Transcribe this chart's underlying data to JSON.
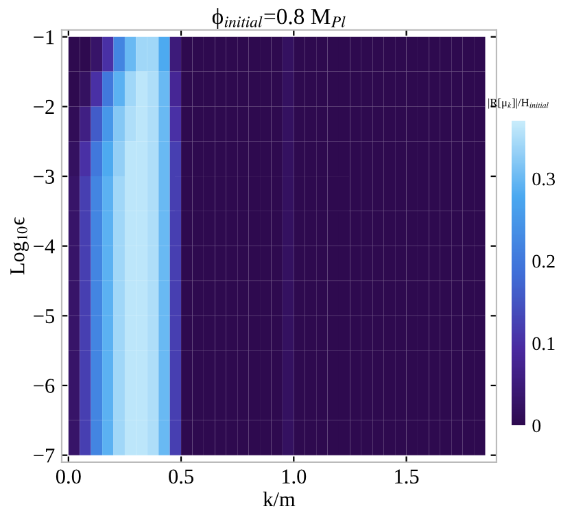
{
  "chart_data": {
    "type": "heatmap",
    "title": "ϕ$_{initial}$=0.8 M$_{Pl}$",
    "xlabel": "k/m",
    "ylabel": "Log$_{10}$ϵ",
    "clabel": "|R[μ$_{k}$]|/H$_{initial}$",
    "x": [
      0.025,
      0.075,
      0.125,
      0.175,
      0.225,
      0.275,
      0.325,
      0.375,
      0.425,
      0.475,
      0.525,
      0.575,
      0.625,
      0.675,
      0.725,
      0.775,
      0.825,
      0.875,
      0.925,
      0.975,
      1.025,
      1.075,
      1.125,
      1.175,
      1.225,
      1.275,
      1.325,
      1.375,
      1.425,
      1.475,
      1.525,
      1.575,
      1.625,
      1.675,
      1.725,
      1.775,
      1.825
    ],
    "y": [
      -1.25,
      -1.75,
      -2.25,
      -2.75,
      -3.25,
      -3.75,
      -4.25,
      -4.75,
      -5.25,
      -5.75,
      -6.25,
      -6.75
    ],
    "xlim": [
      -0.03,
      1.9
    ],
    "ylim": [
      -7.1,
      -0.9
    ],
    "xticks": [
      {
        "value": 0,
        "label": "0.0"
      },
      {
        "value": 0.5,
        "label": "0.5"
      },
      {
        "value": 1,
        "label": "1.0"
      },
      {
        "value": 1.5,
        "label": "1.5"
      }
    ],
    "yticks": [
      {
        "value": -7,
        "label": "−7"
      },
      {
        "value": -6,
        "label": "−6"
      },
      {
        "value": -5,
        "label": "−5"
      },
      {
        "value": -4,
        "label": "−4"
      },
      {
        "value": -3,
        "label": "−3"
      },
      {
        "value": -2,
        "label": "−2"
      },
      {
        "value": -1,
        "label": "−1"
      }
    ],
    "clim": [
      0,
      0.37
    ],
    "cticks": [
      0,
      0.1,
      0.2,
      0.3
    ],
    "cells": [
      [
        0,
        0,
        0.03,
        0.1,
        0.22,
        0.3,
        0.34,
        0.34,
        0.28,
        0.05,
        0,
        0,
        0,
        0,
        0,
        0,
        0,
        0,
        0,
        0.02,
        0,
        0,
        0,
        0,
        0,
        0,
        0,
        0,
        0,
        0,
        0,
        0,
        0,
        0,
        0,
        0,
        0
      ],
      [
        0,
        0.02,
        0.1,
        0.2,
        0.29,
        0.34,
        0.36,
        0.35,
        0.3,
        0.08,
        0,
        0,
        0,
        0,
        0,
        0,
        0,
        0,
        0,
        0.02,
        0,
        0,
        0,
        0,
        0,
        0,
        0,
        0,
        0,
        0,
        0,
        0,
        0,
        0,
        0,
        0,
        0
      ],
      [
        0.01,
        0.06,
        0.16,
        0.25,
        0.32,
        0.35,
        0.36,
        0.35,
        0.3,
        0.1,
        0,
        0,
        0,
        0,
        0,
        0,
        0,
        0,
        0,
        0.02,
        0,
        0,
        0,
        0,
        0,
        0,
        0,
        0,
        0,
        0,
        0,
        0,
        0,
        0,
        0,
        0,
        0
      ],
      [
        0.02,
        0.1,
        0.2,
        0.28,
        0.33,
        0.36,
        0.36,
        0.35,
        0.3,
        0.12,
        0,
        0,
        0,
        0,
        0,
        0,
        0,
        0,
        0,
        0.02,
        0,
        0,
        0,
        0,
        0,
        0,
        0,
        0,
        0,
        0,
        0,
        0,
        0,
        0,
        0,
        0,
        0
      ],
      [
        0.03,
        0.12,
        0.22,
        0.29,
        0.34,
        0.36,
        0.36,
        0.35,
        0.3,
        0.12,
        0,
        0,
        0,
        0,
        0,
        0,
        0,
        0,
        0,
        0.02,
        0,
        0,
        0,
        0,
        0,
        0,
        0,
        0,
        0,
        0,
        0,
        0,
        0,
        0,
        0,
        0,
        0
      ],
      [
        0.03,
        0.12,
        0.22,
        0.29,
        0.34,
        0.36,
        0.36,
        0.35,
        0.3,
        0.12,
        0,
        0,
        0,
        0,
        0,
        0,
        0,
        0,
        0,
        0.02,
        0,
        0,
        0,
        0,
        0,
        0,
        0,
        0,
        0,
        0,
        0,
        0,
        0,
        0,
        0,
        0,
        0
      ],
      [
        0.03,
        0.12,
        0.22,
        0.29,
        0.34,
        0.36,
        0.36,
        0.35,
        0.3,
        0.12,
        0,
        0,
        0,
        0,
        0,
        0,
        0,
        0,
        0,
        0.02,
        0,
        0,
        0,
        0,
        0,
        0,
        0,
        0,
        0,
        0,
        0,
        0,
        0,
        0,
        0,
        0,
        0
      ],
      [
        0.03,
        0.12,
        0.22,
        0.29,
        0.34,
        0.36,
        0.36,
        0.35,
        0.3,
        0.12,
        0,
        0,
        0,
        0,
        0,
        0,
        0,
        0,
        0,
        0.02,
        0,
        0,
        0,
        0,
        0,
        0,
        0,
        0,
        0,
        0,
        0,
        0,
        0,
        0,
        0,
        0,
        0
      ],
      [
        0.03,
        0.12,
        0.22,
        0.29,
        0.34,
        0.36,
        0.36,
        0.35,
        0.3,
        0.12,
        0,
        0,
        0,
        0,
        0,
        0,
        0,
        0,
        0,
        0.02,
        0,
        0,
        0,
        0,
        0,
        0,
        0,
        0,
        0,
        0,
        0,
        0,
        0,
        0,
        0,
        0,
        0
      ],
      [
        0.03,
        0.12,
        0.22,
        0.29,
        0.34,
        0.36,
        0.36,
        0.35,
        0.3,
        0.12,
        0,
        0,
        0,
        0,
        0,
        0,
        0,
        0,
        0,
        0.02,
        0,
        0,
        0,
        0,
        0,
        0,
        0,
        0,
        0,
        0,
        0,
        0,
        0,
        0,
        0,
        0,
        0
      ],
      [
        0.03,
        0.12,
        0.22,
        0.29,
        0.34,
        0.36,
        0.36,
        0.35,
        0.3,
        0.12,
        0,
        0,
        0,
        0,
        0,
        0,
        0,
        0,
        0,
        0.02,
        0,
        0,
        0,
        0,
        0,
        0,
        0,
        0,
        0,
        0,
        0,
        0,
        0,
        0,
        0,
        0,
        0
      ],
      [
        0.03,
        0.12,
        0.22,
        0.29,
        0.34,
        0.36,
        0.36,
        0.35,
        0.3,
        0.12,
        0,
        0,
        0,
        0,
        0,
        0,
        0,
        0,
        0,
        0.02,
        0,
        0,
        0,
        0,
        0,
        0,
        0,
        0,
        0,
        0,
        0,
        0,
        0,
        0,
        0,
        0,
        0
      ]
    ]
  }
}
